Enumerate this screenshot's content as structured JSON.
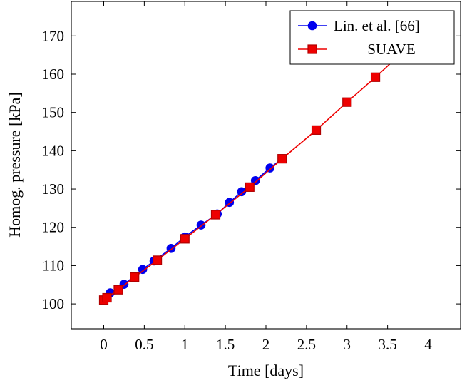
{
  "chart_data": {
    "type": "line",
    "title": "",
    "xlabel": "Time [days]",
    "ylabel": "Homog. pressure [kPa]",
    "xlim": [
      -0.4,
      4.4
    ],
    "ylim": [
      93.5,
      179
    ],
    "x_ticks": [
      0,
      0.5,
      1,
      1.5,
      2,
      2.5,
      3,
      3.5,
      4
    ],
    "x_tick_labels": [
      "0",
      "0.5",
      "1",
      "1.5",
      "2",
      "2.5",
      "3",
      "3.5",
      "4"
    ],
    "y_ticks": [
      100,
      110,
      120,
      130,
      140,
      150,
      160,
      170
    ],
    "y_tick_labels": [
      "100",
      "110",
      "120",
      "130",
      "140",
      "150",
      "160",
      "170"
    ],
    "grid": false,
    "legend_position": "top-right",
    "series": [
      {
        "name": "Lin. et al. [66]",
        "color": "#0000ee",
        "marker": "circle",
        "points": [
          [
            0,
            101.0
          ],
          [
            0.08,
            102.9
          ],
          [
            0.25,
            105.1
          ],
          [
            0.48,
            109.0
          ],
          [
            0.62,
            111.2
          ],
          [
            0.83,
            114.5
          ],
          [
            1.0,
            117.5
          ],
          [
            1.2,
            120.6
          ],
          [
            1.4,
            123.5
          ],
          [
            1.55,
            126.5
          ],
          [
            1.7,
            129.3
          ],
          [
            1.87,
            132.2
          ],
          [
            2.05,
            135.5
          ],
          [
            2.2,
            137.9
          ]
        ]
      },
      {
        "name": "SUAVE",
        "color": "#ee0000",
        "marker": "square",
        "points": [
          [
            0,
            101.0
          ],
          [
            0.04,
            101.6
          ],
          [
            0.18,
            103.7
          ],
          [
            0.38,
            107.0
          ],
          [
            0.66,
            111.4
          ],
          [
            1.0,
            117.0
          ],
          [
            1.38,
            123.3
          ],
          [
            1.8,
            130.5
          ],
          [
            2.2,
            137.9
          ],
          [
            2.62,
            145.4
          ],
          [
            3.0,
            152.7
          ],
          [
            3.35,
            159.2
          ],
          [
            3.7,
            166.0
          ]
        ]
      }
    ]
  }
}
